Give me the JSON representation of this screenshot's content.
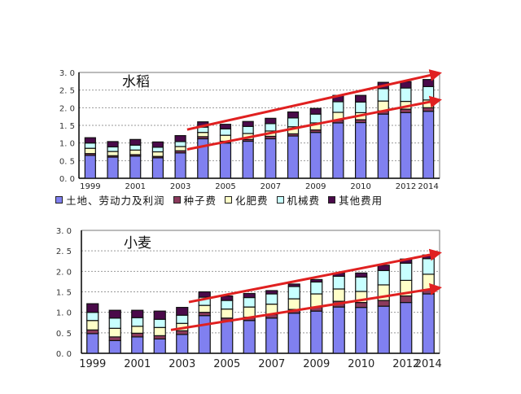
{
  "chart_data": [
    {
      "type": "bar",
      "stacked": true,
      "title": "水稻",
      "xlabel": "",
      "ylabel": "",
      "ylim": [
        0,
        3.0
      ],
      "yticks": [
        "0.0",
        "0.5",
        "1.0",
        "1.5",
        "2.0",
        "2.5",
        "3.0"
      ],
      "grid": true,
      "categories": [
        "1999",
        "2000",
        "2001",
        "2002",
        "2003",
        "2004",
        "2005",
        "2006",
        "2007",
        "2008",
        "2009",
        "2010",
        "2011",
        "2012",
        "2013",
        "2014"
      ],
      "xtick_labels": [
        "1999",
        "2001",
        "2003",
        "2005",
        "2007",
        "2009",
        "2010",
        "2012",
        "2014"
      ],
      "series": [
        {
          "name": "土地、劳动力及利润",
          "color": "#8080f0",
          "values": [
            0.65,
            0.6,
            0.63,
            0.58,
            0.72,
            1.12,
            1.0,
            1.05,
            1.12,
            1.2,
            1.3,
            1.57,
            1.58,
            1.82,
            1.86,
            1.9
          ]
        },
        {
          "name": "种子费",
          "color": "#8b3a5c",
          "values": [
            0.05,
            0.04,
            0.04,
            0.04,
            0.06,
            0.06,
            0.05,
            0.05,
            0.07,
            0.06,
            0.07,
            0.08,
            0.08,
            0.09,
            0.1,
            0.1
          ]
        },
        {
          "name": "化肥费",
          "color": "#ffffc8",
          "values": [
            0.15,
            0.12,
            0.13,
            0.13,
            0.12,
            0.12,
            0.17,
            0.17,
            0.15,
            0.2,
            0.2,
            0.22,
            0.2,
            0.28,
            0.22,
            0.22
          ]
        },
        {
          "name": "机械费",
          "color": "#c8ffff",
          "values": [
            0.15,
            0.13,
            0.14,
            0.13,
            0.14,
            0.15,
            0.18,
            0.2,
            0.21,
            0.25,
            0.25,
            0.3,
            0.3,
            0.35,
            0.38,
            0.38
          ]
        },
        {
          "name": "其他费用",
          "color": "#4a0a4a",
          "values": [
            0.15,
            0.15,
            0.16,
            0.15,
            0.17,
            0.15,
            0.13,
            0.14,
            0.15,
            0.17,
            0.16,
            0.18,
            0.19,
            0.18,
            0.18,
            0.2
          ]
        }
      ],
      "annotations": [
        {
          "type": "arrow",
          "color": "#e02020",
          "from": [
            4.3,
            1.38
          ],
          "to": [
            15.5,
            2.98
          ]
        },
        {
          "type": "arrow",
          "color": "#e02020",
          "from": [
            4.3,
            0.82
          ],
          "to": [
            15.5,
            2.22
          ]
        }
      ]
    },
    {
      "type": "bar",
      "stacked": true,
      "title": "小麦",
      "xlabel": "",
      "ylabel": "",
      "ylim": [
        0,
        3.0
      ],
      "yticks": [
        "0.0",
        "0.5",
        "1.0",
        "1.5",
        "2.0",
        "2.5",
        "3.0"
      ],
      "grid": true,
      "categories": [
        "1999",
        "2000",
        "2001",
        "2002",
        "2003",
        "2004",
        "2005",
        "2006",
        "2007",
        "2008",
        "2009",
        "2010",
        "2011",
        "2012",
        "2013",
        "2014"
      ],
      "xtick_labels": [
        "1999",
        "2001",
        "2003",
        "2005",
        "2007",
        "2009",
        "2010",
        "2012",
        "2014"
      ],
      "series": [
        {
          "name": "土地、劳动力及利润",
          "color": "#8080f0",
          "values": [
            0.48,
            0.31,
            0.4,
            0.35,
            0.46,
            0.92,
            0.78,
            0.8,
            0.86,
            0.98,
            1.03,
            1.13,
            1.12,
            1.15,
            1.24,
            1.45
          ]
        },
        {
          "name": "种子费",
          "color": "#8b3a5c",
          "values": [
            0.09,
            0.09,
            0.09,
            0.08,
            0.09,
            0.08,
            0.08,
            0.08,
            0.09,
            0.09,
            0.1,
            0.14,
            0.12,
            0.14,
            0.16,
            0.1
          ]
        },
        {
          "name": "化肥费",
          "color": "#ffffc8",
          "values": [
            0.23,
            0.21,
            0.17,
            0.2,
            0.18,
            0.17,
            0.22,
            0.25,
            0.25,
            0.26,
            0.32,
            0.3,
            0.27,
            0.38,
            0.38,
            0.38
          ]
        },
        {
          "name": "机械费",
          "color": "#c8ffff",
          "values": [
            0.2,
            0.25,
            0.21,
            0.2,
            0.2,
            0.2,
            0.21,
            0.23,
            0.25,
            0.3,
            0.29,
            0.31,
            0.35,
            0.35,
            0.42,
            0.38
          ]
        },
        {
          "name": "其他费用",
          "color": "#4a0a4a",
          "values": [
            0.21,
            0.19,
            0.18,
            0.2,
            0.19,
            0.13,
            0.11,
            0.1,
            0.08,
            0.06,
            0.06,
            0.08,
            0.1,
            0.13,
            0.1,
            0.09
          ]
        }
      ],
      "annotations": [
        {
          "type": "arrow",
          "color": "#e02020",
          "from": [
            4.3,
            1.25
          ],
          "to": [
            15.5,
            2.45
          ]
        },
        {
          "type": "arrow",
          "color": "#e02020",
          "from": [
            3.5,
            0.57
          ],
          "to": [
            15.5,
            1.6
          ]
        }
      ]
    }
  ],
  "legend": {
    "items": [
      {
        "label": "土地、劳动力及利润",
        "color": "#8080f0"
      },
      {
        "label": "种子费",
        "color": "#8b3a5c"
      },
      {
        "label": "化肥费",
        "color": "#ffffc8"
      },
      {
        "label": "机械费",
        "color": "#c8ffff"
      },
      {
        "label": "其他费用",
        "color": "#4a0a4a"
      }
    ]
  }
}
